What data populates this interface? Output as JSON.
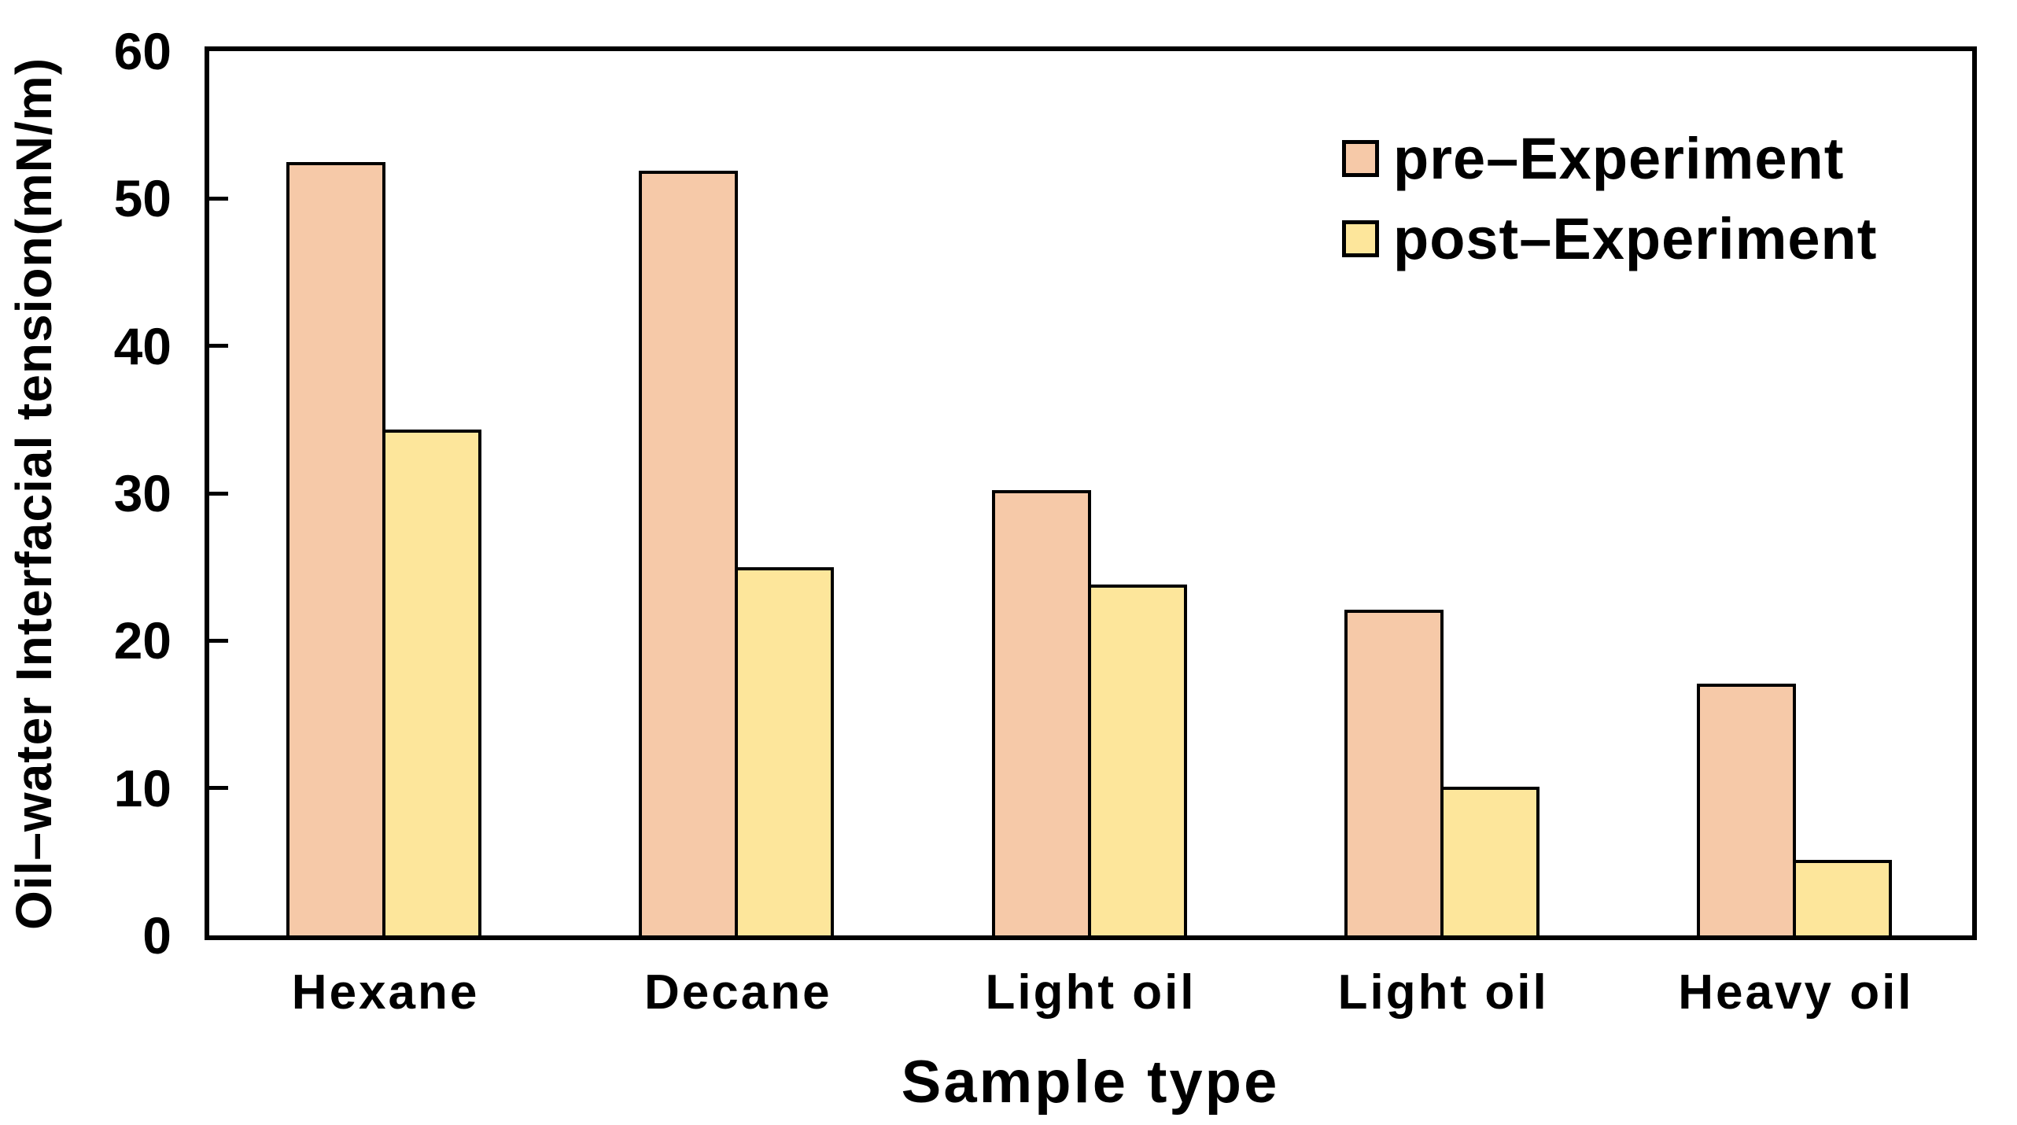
{
  "chart_data": {
    "type": "bar",
    "title": "",
    "categories": [
      "Hexane",
      "Decane",
      "Light oil",
      "Light oil",
      "Heavy oil"
    ],
    "series": [
      {
        "name": "pre–Experiment",
        "color": "#F6C9A8",
        "values": [
          52.5,
          51.9,
          30.2,
          22.1,
          17.1
        ]
      },
      {
        "name": "post–Experiment",
        "color": "#FDE69B",
        "values": [
          34.3,
          25.0,
          23.8,
          10.1,
          5.1
        ]
      }
    ],
    "xlabel": "Sample type",
    "ylabel": "Oil–water Interfacial tension(mN/m)",
    "ylim": [
      0,
      60
    ],
    "yticks": [
      0,
      10,
      20,
      30,
      40,
      50,
      60
    ],
    "grid": false,
    "legend_position": "upper right",
    "bar_edge_color": "#000000",
    "text_color": "#000000"
  }
}
